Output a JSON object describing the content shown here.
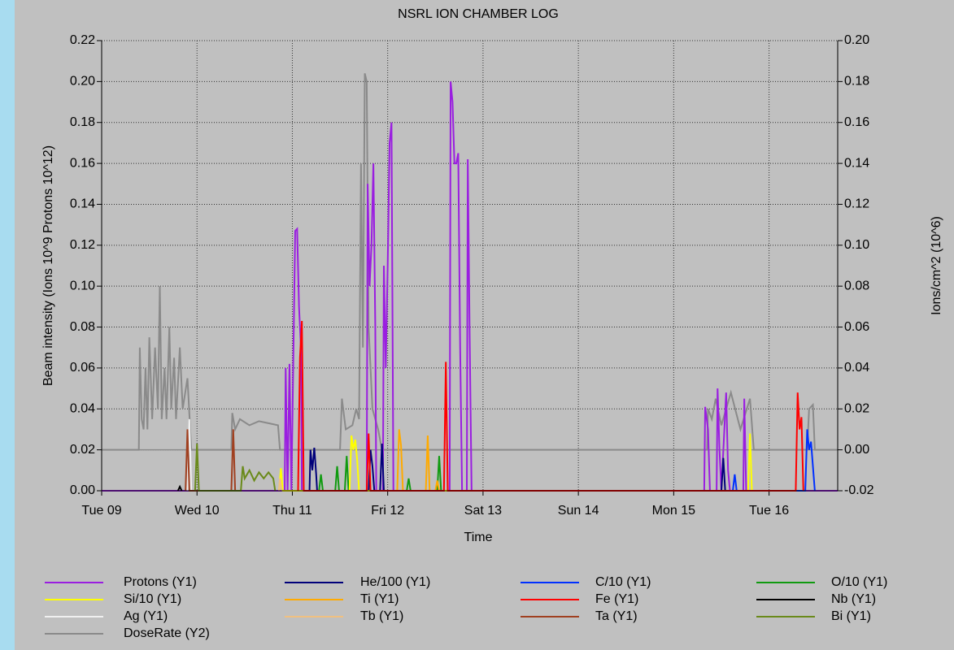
{
  "chart_data": {
    "type": "line",
    "title": "NSRL ION CHAMBER LOG",
    "xlabel": "Time",
    "ylabel": "Beam intensity (Ions 10^9 Protons 10^12)",
    "y2label": "Ions/cm^2 (10^6)",
    "grid": true,
    "legend": "bottom",
    "xlim": [
      0,
      7.72
    ],
    "xticks": [
      {
        "value": 0,
        "label": "Tue 09"
      },
      {
        "value": 1,
        "label": "Wed 10"
      },
      {
        "value": 2,
        "label": "Thu 11"
      },
      {
        "value": 3,
        "label": "Fri 12"
      },
      {
        "value": 4,
        "label": "Sat 13"
      },
      {
        "value": 5,
        "label": "Sun 14"
      },
      {
        "value": 6,
        "label": "Mon 15"
      },
      {
        "value": 7,
        "label": "Tue 16"
      }
    ],
    "ylim": [
      0,
      0.22
    ],
    "yticks": [
      {
        "value": 0,
        "label": "0.00"
      },
      {
        "value": 0.02,
        "label": "0.02"
      },
      {
        "value": 0.04,
        "label": "0.04"
      },
      {
        "value": 0.06,
        "label": "0.06"
      },
      {
        "value": 0.08,
        "label": "0.08"
      },
      {
        "value": 0.1,
        "label": "0.10"
      },
      {
        "value": 0.12,
        "label": "0.12"
      },
      {
        "value": 0.14,
        "label": "0.14"
      },
      {
        "value": 0.16,
        "label": "0.16"
      },
      {
        "value": 0.18,
        "label": "0.18"
      },
      {
        "value": 0.2,
        "label": "0.20"
      },
      {
        "value": 0.22,
        "label": "0.22"
      }
    ],
    "y2lim": [
      -0.02,
      0.2
    ],
    "y2ticks": [
      {
        "value": -0.02,
        "label": "-0.02"
      },
      {
        "value": 0,
        "label": "0.00"
      },
      {
        "value": 0.02,
        "label": "0.02"
      },
      {
        "value": 0.04,
        "label": "0.04"
      },
      {
        "value": 0.06,
        "label": "0.06"
      },
      {
        "value": 0.08,
        "label": "0.08"
      },
      {
        "value": 0.1,
        "label": "0.10"
      },
      {
        "value": 0.12,
        "label": "0.12"
      },
      {
        "value": 0.14,
        "label": "0.14"
      },
      {
        "value": 0.16,
        "label": "0.16"
      },
      {
        "value": 0.18,
        "label": "0.18"
      },
      {
        "value": 0.2,
        "label": "0.20"
      }
    ],
    "series": [
      {
        "name": "Protons (Y1)",
        "color": "#9a1ee0",
        "x": [
          0,
          1.92,
          1.93,
          1.95,
          1.97,
          1.99,
          2.03,
          2.05,
          2.07,
          2.09,
          2.1,
          2.78,
          2.79,
          2.81,
          2.83,
          2.85,
          2.87,
          2.88,
          2.95,
          2.96,
          2.98,
          3.0,
          3.02,
          3.04,
          3.06,
          3.65,
          3.66,
          3.68,
          3.7,
          3.72,
          3.74,
          3.76,
          3.78,
          3.83,
          3.84,
          3.86,
          3.88,
          6.32,
          6.33,
          6.36,
          6.38,
          6.45,
          6.46,
          6.48,
          6.5,
          6.55,
          6.57,
          6.59,
          6.73,
          6.74,
          6.76,
          7.72
        ],
        "values": [
          0,
          0,
          0.06,
          0,
          0.062,
          0,
          0.127,
          0.128,
          0.09,
          0.07,
          0,
          0,
          0.15,
          0.1,
          0.12,
          0.16,
          0.08,
          0,
          0,
          0.11,
          0.06,
          0.11,
          0.17,
          0.18,
          0,
          0,
          0.2,
          0.19,
          0.16,
          0.16,
          0.165,
          0.07,
          0,
          0,
          0.162,
          0.075,
          0,
          0,
          0.041,
          0.03,
          0,
          0,
          0.05,
          0.02,
          0,
          0.048,
          0.01,
          0,
          0,
          0.045,
          0,
          0
        ]
      },
      {
        "name": "He/100 (Y1)",
        "color": "#00007a",
        "x": [
          2.18,
          2.19,
          2.21,
          2.23,
          2.25,
          2.26,
          2.8,
          2.82,
          2.84,
          2.86,
          2.92,
          2.94,
          2.96,
          6.5,
          6.52,
          6.54
        ],
        "values": [
          0,
          0.02,
          0.01,
          0.021,
          0.008,
          0,
          0,
          0.02,
          0.012,
          0,
          0,
          0.023,
          0,
          0,
          0.016,
          0
        ]
      },
      {
        "name": "C/10 (Y1)",
        "color": "#0030ff",
        "x": [
          6.62,
          6.64,
          6.66,
          7.38,
          7.4,
          7.42,
          7.44,
          7.46,
          7.48
        ],
        "values": [
          0,
          0.008,
          0,
          0,
          0.03,
          0.02,
          0.024,
          0.012,
          0
        ]
      },
      {
        "name": "O/10 (Y1)",
        "color": "#109a10",
        "x": [
          2.28,
          2.3,
          2.32,
          2.45,
          2.47,
          2.49,
          2.55,
          2.57,
          2.59,
          3.2,
          3.22,
          3.24,
          3.52,
          3.54,
          3.56
        ],
        "values": [
          0,
          0.008,
          0,
          0,
          0.012,
          0,
          0,
          0.017,
          0,
          0,
          0.006,
          0,
          0,
          0.017,
          0
        ]
      },
      {
        "name": "Si/10 (Y1)",
        "color": "#ffff00",
        "x": [
          1.86,
          1.88,
          1.9,
          2.6,
          2.62,
          2.64,
          2.66,
          2.68,
          2.7,
          6.78,
          6.8,
          6.82
        ],
        "values": [
          0,
          0.011,
          0,
          0,
          0.027,
          0.02,
          0.025,
          0.015,
          0,
          0,
          0.028,
          0
        ]
      },
      {
        "name": "Ti (Y1)",
        "color": "#ffaa00",
        "x": [
          3.1,
          3.12,
          3.14,
          3.16,
          3.4,
          3.42,
          3.44,
          3.5,
          3.52,
          3.54
        ],
        "values": [
          0,
          0.03,
          0.022,
          0,
          0,
          0.027,
          0,
          0,
          0.005,
          0
        ]
      },
      {
        "name": "Fe (Y1)",
        "color": "#ff0000",
        "x": [
          2.06,
          2.08,
          2.1,
          2.12,
          2.78,
          2.8,
          2.82,
          3.59,
          3.61,
          3.63,
          7.28,
          7.3,
          7.32,
          7.34,
          7.36
        ],
        "values": [
          0,
          0.065,
          0.083,
          0,
          0,
          0.028,
          0,
          0,
          0.063,
          0,
          0,
          0.048,
          0.03,
          0.036,
          0
        ]
      },
      {
        "name": "Nb (Y1)",
        "color": "#000000",
        "x": [
          0.8,
          0.82,
          0.84
        ],
        "values": [
          0,
          0.002,
          0
        ]
      },
      {
        "name": "Ag (Y1)",
        "color": "#f0f0f0",
        "x": [
          0.9,
          0.92,
          0.94
        ],
        "values": [
          0,
          0.035,
          0
        ]
      },
      {
        "name": "Tb (Y1)",
        "color": "#f0c080",
        "x": [
          1.86,
          1.87,
          1.89
        ],
        "values": [
          0,
          0.006,
          0
        ]
      },
      {
        "name": "Ta (Y1)",
        "color": "#a04020",
        "x": [
          0.88,
          0.9,
          0.92,
          1.36,
          1.38,
          1.4
        ],
        "values": [
          0,
          0.03,
          0,
          0,
          0.03,
          0
        ]
      },
      {
        "name": "Bi (Y1)",
        "color": "#6a8a1a",
        "x": [
          0.98,
          1.0,
          1.02,
          1.46,
          1.48,
          1.5,
          1.55,
          1.6,
          1.65,
          1.7,
          1.75,
          1.8,
          1.82
        ],
        "values": [
          0,
          0.023,
          0,
          0,
          0.012,
          0.006,
          0.01,
          0.005,
          0.009,
          0.006,
          0.009,
          0.006,
          0
        ]
      },
      {
        "name": "DoseRate (Y2)",
        "color": "#8a8a8a",
        "axis": "y2",
        "x": [
          0,
          0.39,
          0.4,
          0.42,
          0.44,
          0.46,
          0.48,
          0.5,
          0.53,
          0.56,
          0.59,
          0.61,
          0.63,
          0.66,
          0.68,
          0.71,
          0.73,
          0.76,
          0.78,
          0.82,
          0.85,
          0.9,
          0.94,
          1.36,
          1.37,
          1.4,
          1.45,
          1.55,
          1.65,
          1.75,
          1.85,
          1.87,
          2.5,
          2.52,
          2.56,
          2.63,
          2.67,
          2.7,
          2.72,
          2.74,
          2.76,
          2.78,
          2.8,
          2.84,
          2.9,
          2.94,
          6.35,
          6.36,
          6.4,
          6.44,
          6.5,
          6.6,
          6.7,
          6.8,
          6.84,
          7.4,
          7.42,
          7.46,
          7.48,
          7.72
        ],
        "values": [
          0,
          0,
          0.05,
          0.015,
          0.01,
          0.04,
          0.01,
          0.055,
          0.015,
          0.05,
          0.02,
          0.08,
          0.015,
          0.04,
          0.015,
          0.06,
          0.02,
          0.045,
          0.015,
          0.05,
          0.02,
          0.035,
          0,
          0,
          0.018,
          0.01,
          0.015,
          0.012,
          0.014,
          0.013,
          0.012,
          0,
          0,
          0.025,
          0.01,
          0.012,
          0.02,
          0.015,
          0.14,
          0.05,
          0.184,
          0.18,
          0.06,
          0.02,
          0.01,
          0,
          0,
          0.02,
          0.015,
          0.025,
          0.012,
          0.028,
          0.01,
          0.025,
          0,
          0,
          0.02,
          0.022,
          0,
          0
        ]
      }
    ]
  }
}
